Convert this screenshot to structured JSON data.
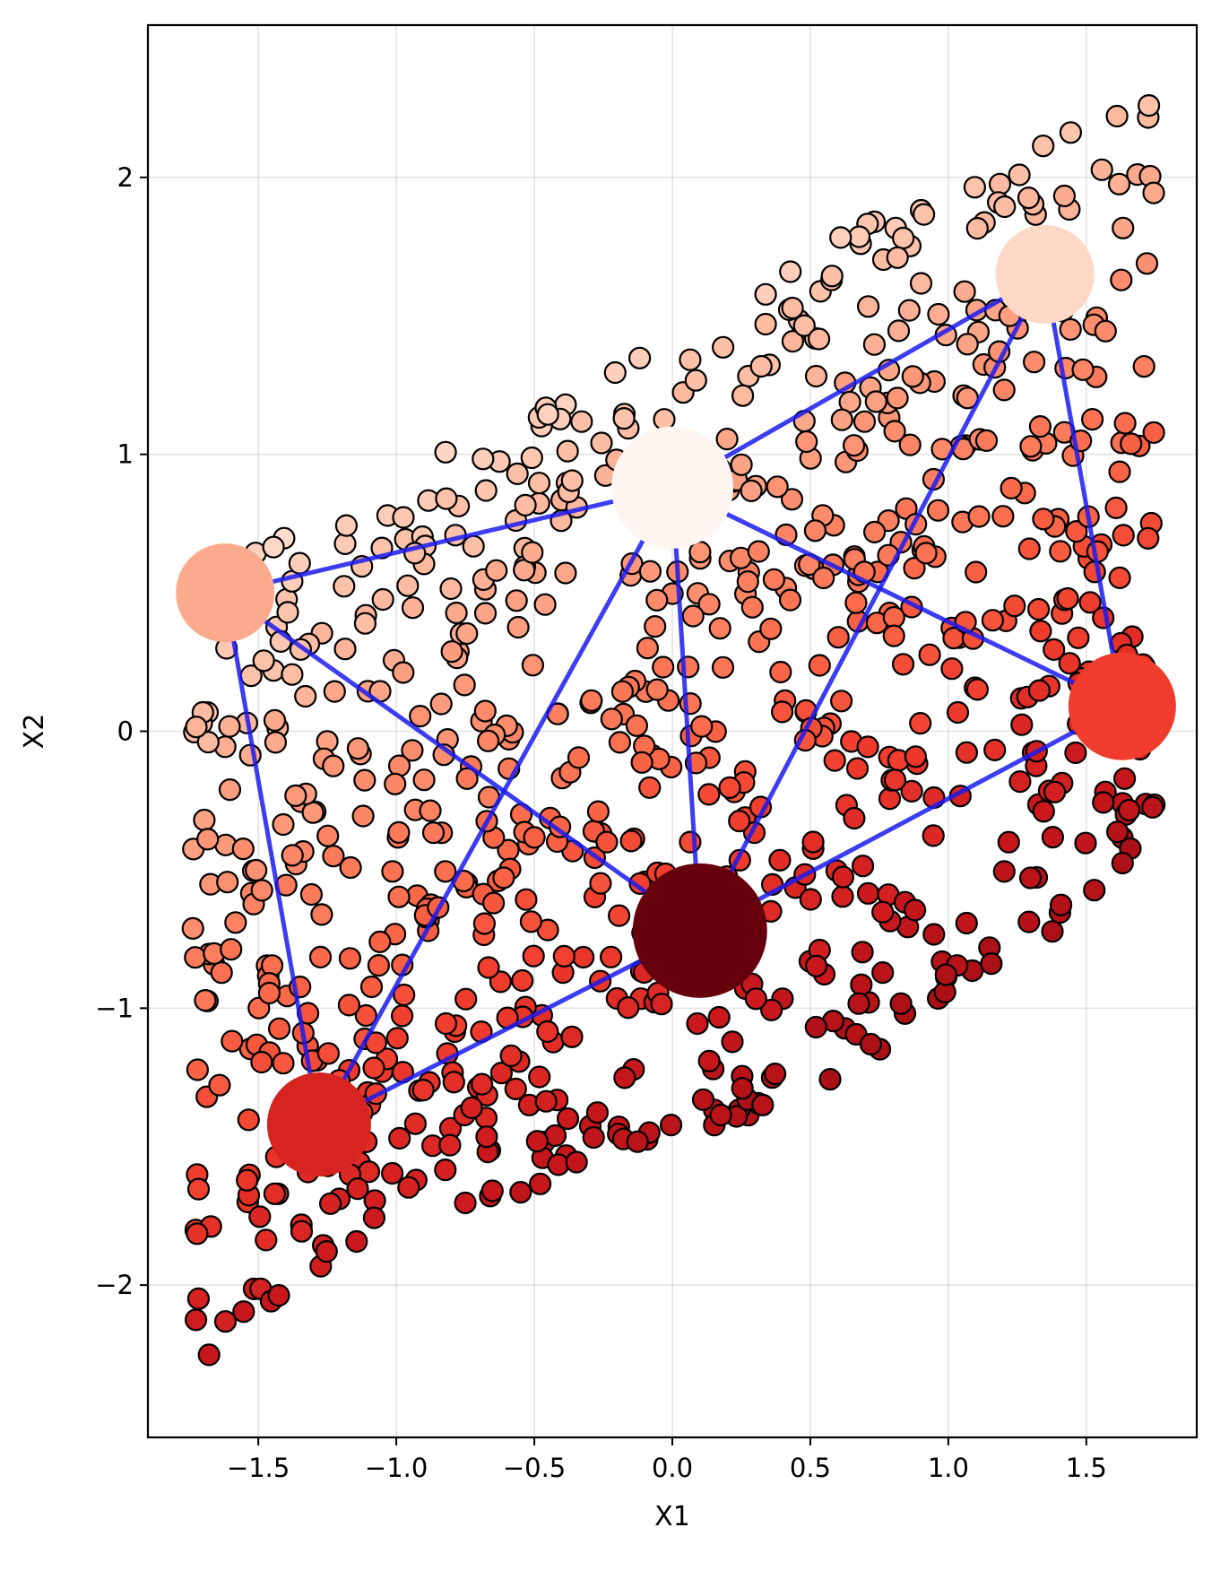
{
  "chart_data": {
    "type": "scatter",
    "title": "",
    "xlabel": "X1",
    "ylabel": "X2",
    "xlim": [
      -1.9,
      1.9
    ],
    "ylim": [
      -2.55,
      2.55
    ],
    "grid": true,
    "colormap": "Reds",
    "color_range": [
      -1.6,
      1.6
    ],
    "x_ticks": [
      -1.5,
      -1.0,
      -0.5,
      0.0,
      0.5,
      1.0,
      1.5
    ],
    "x_tick_labels": [
      "−1.5",
      "−1.0",
      "−0.5",
      "0.0",
      "0.5",
      "1.0",
      "1.5"
    ],
    "y_ticks": [
      -2,
      -1,
      0,
      1,
      2
    ],
    "y_tick_labels": [
      "−2",
      "−1",
      "0",
      "1",
      "2"
    ],
    "points": {
      "count": 900,
      "x_range": [
        -1.75,
        1.75
      ],
      "description_of_bounds": {
        "lower_edge": [
          [
            -1.75,
            -2.35
          ],
          [
            -1.3,
            -2.0
          ],
          [
            -1.0,
            -1.8
          ],
          [
            -0.5,
            -1.65
          ],
          [
            0.0,
            -1.5
          ],
          [
            0.5,
            -1.3
          ],
          [
            1.0,
            -1.0
          ],
          [
            1.5,
            -0.7
          ],
          [
            1.75,
            -0.5
          ]
        ],
        "upper_edge": [
          [
            -1.75,
            0.1
          ],
          [
            -1.5,
            0.75
          ],
          [
            -1.0,
            0.95
          ],
          [
            -0.5,
            1.15
          ],
          [
            0.0,
            1.45
          ],
          [
            0.5,
            1.75
          ],
          [
            1.0,
            1.95
          ],
          [
            1.3,
            2.15
          ],
          [
            1.7,
            2.3
          ]
        ]
      }
    },
    "nodes": [
      {
        "x": 0.0,
        "y": 0.88,
        "value": -1.6,
        "color": "#fff5f0",
        "size": 68
      },
      {
        "x": 1.35,
        "y": 1.65,
        "value": -1.05,
        "color": "#fdd8c7",
        "size": 55
      },
      {
        "x": -1.62,
        "y": 0.5,
        "value": -0.35,
        "color": "#fcaa8d",
        "size": 55
      },
      {
        "x": 1.63,
        "y": 0.09,
        "value": 0.8,
        "color": "#ef3c2d",
        "size": 60
      },
      {
        "x": -1.28,
        "y": -1.42,
        "value": 1.05,
        "color": "#d62421",
        "size": 58
      },
      {
        "x": 0.1,
        "y": -0.72,
        "value": 1.6,
        "color": "#67000d",
        "size": 75
      }
    ],
    "edges": [
      [
        0,
        1
      ],
      [
        0,
        2
      ],
      [
        0,
        3
      ],
      [
        0,
        4
      ],
      [
        0,
        5
      ],
      [
        1,
        3
      ],
      [
        1,
        5
      ],
      [
        2,
        4
      ],
      [
        2,
        5
      ],
      [
        3,
        5
      ],
      [
        4,
        5
      ]
    ],
    "edge_color": "#1a1aee"
  }
}
